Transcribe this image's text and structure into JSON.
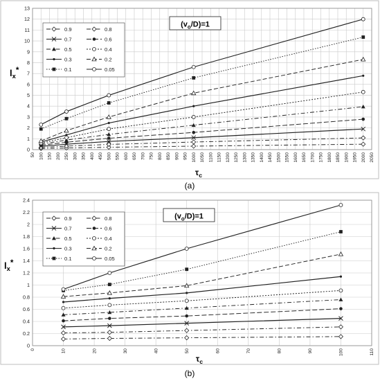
{
  "chart_data": [
    {
      "type": "line",
      "panel_label": "(a)",
      "annotation": "(v_o/D)=1",
      "ylabel": "l_x*",
      "xlabel": "τ_c",
      "xlim": [
        50,
        2050
      ],
      "ylim": [
        0,
        13
      ],
      "xticks": [
        50,
        100,
        150,
        200,
        250,
        300,
        350,
        400,
        450,
        500,
        550,
        600,
        650,
        700,
        750,
        800,
        850,
        900,
        950,
        1000,
        1050,
        1100,
        1150,
        1200,
        1250,
        1300,
        1350,
        1400,
        1450,
        1500,
        1550,
        1600,
        1650,
        1700,
        1750,
        1800,
        1850,
        1900,
        1950,
        2000,
        2050
      ],
      "yticks": [
        0,
        1,
        2,
        3,
        4,
        5,
        6,
        7,
        8,
        9,
        10,
        11,
        12,
        13
      ],
      "grid": true,
      "legend_position": "top-left",
      "x": [
        100,
        250,
        500,
        1000,
        2000
      ],
      "series": [
        {
          "name": "0.9",
          "marker": "diamond-open",
          "dash": "6 3 1.5 3",
          "values": [
            0.1,
            0.15,
            0.22,
            0.32,
            0.5
          ]
        },
        {
          "name": "0.8",
          "marker": "diamond-open",
          "dash": "6 3 1.5 3",
          "values": [
            0.2,
            0.32,
            0.48,
            0.7,
            1.08
          ]
        },
        {
          "name": "0.7",
          "marker": "x",
          "dash": "",
          "values": [
            0.3,
            0.5,
            0.75,
            1.1,
            1.9
          ]
        },
        {
          "name": "0.6",
          "marker": "circle-solid",
          "dash": "7 3",
          "values": [
            0.4,
            0.68,
            1.05,
            1.58,
            2.8
          ]
        },
        {
          "name": "0.5",
          "marker": "triangle",
          "dash": "6 3 1.5 3",
          "values": [
            0.5,
            0.88,
            1.4,
            2.25,
            3.95
          ]
        },
        {
          "name": "0.4",
          "marker": "circle-open",
          "dash": "2 2",
          "values": [
            0.6,
            1.1,
            1.9,
            3.0,
            5.3
          ]
        },
        {
          "name": "0.3",
          "marker": "dot",
          "dash": "",
          "values": [
            0.7,
            1.35,
            2.45,
            4.0,
            6.8
          ]
        },
        {
          "name": "0.2",
          "marker": "triangle-open",
          "dash": "6 3",
          "values": [
            0.8,
            1.75,
            3.0,
            5.2,
            8.3
          ]
        },
        {
          "name": "0.1",
          "marker": "square",
          "dash": "1.5 2",
          "values": [
            1.9,
            2.85,
            4.3,
            6.6,
            10.35
          ]
        },
        {
          "name": "0.05",
          "marker": "circle-open",
          "dash": "",
          "values": [
            2.3,
            3.5,
            5.0,
            7.6,
            12.0
          ]
        }
      ]
    },
    {
      "type": "line",
      "panel_label": "(b)",
      "annotation": "(v_o/D)=1",
      "ylabel": "l_x*",
      "xlabel": "τ_c",
      "xlim": [
        0,
        110
      ],
      "ylim": [
        0,
        2.4
      ],
      "xticks": [
        0,
        10,
        20,
        30,
        40,
        50,
        60,
        70,
        80,
        90,
        100,
        110
      ],
      "yticks": [
        0,
        0.2,
        0.4,
        0.6,
        0.8,
        1,
        1.2,
        1.4,
        1.6,
        1.8,
        2,
        2.2,
        2.4
      ],
      "grid": true,
      "legend_position": "top-left",
      "x": [
        10,
        25,
        50,
        100
      ],
      "series": [
        {
          "name": "0.9",
          "marker": "diamond-open",
          "dash": "6 3 1.5 3",
          "values": [
            0.11,
            0.12,
            0.13,
            0.15
          ]
        },
        {
          "name": "0.8",
          "marker": "diamond-open",
          "dash": "6 3 1.5 3",
          "values": [
            0.21,
            0.22,
            0.25,
            0.31
          ]
        },
        {
          "name": "0.7",
          "marker": "x",
          "dash": "",
          "values": [
            0.31,
            0.33,
            0.37,
            0.45
          ]
        },
        {
          "name": "0.6",
          "marker": "circle-solid",
          "dash": "7 3",
          "values": [
            0.41,
            0.45,
            0.49,
            0.61
          ]
        },
        {
          "name": "0.5",
          "marker": "triangle",
          "dash": "6 3 1.5 3",
          "values": [
            0.51,
            0.55,
            0.62,
            0.76
          ]
        },
        {
          "name": "0.4",
          "marker": "circle-open",
          "dash": "2 2",
          "values": [
            0.62,
            0.67,
            0.74,
            0.91
          ]
        },
        {
          "name": "0.3",
          "marker": "dot",
          "dash": "",
          "values": [
            0.72,
            0.78,
            0.87,
            1.14
          ]
        },
        {
          "name": "0.2",
          "marker": "triangle-open",
          "dash": "6 3",
          "values": [
            0.81,
            0.87,
            0.99,
            1.51
          ]
        },
        {
          "name": "0.1",
          "marker": "square",
          "dash": "1.5 2",
          "values": [
            0.91,
            1.01,
            1.26,
            1.88
          ]
        },
        {
          "name": "0.05",
          "marker": "circle-open",
          "dash": "",
          "values": [
            0.93,
            1.2,
            1.6,
            2.32
          ]
        }
      ]
    }
  ]
}
